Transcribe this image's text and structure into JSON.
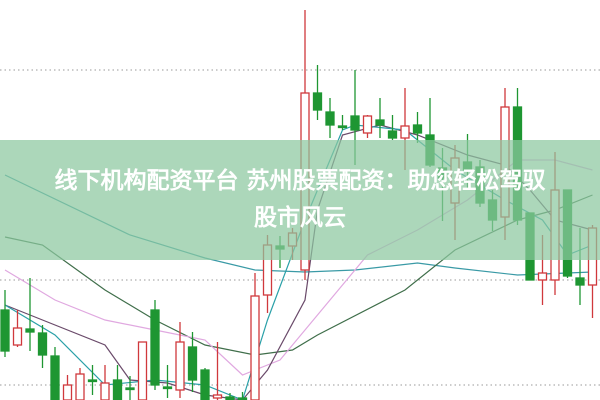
{
  "overlay": {
    "title_line1": "线下机构配资平台 苏州股票配资：助您轻松驾驭",
    "title_line2": "股市风云",
    "banner_color": "#8cc8a0"
  },
  "chart_data": {
    "type": "candlestick",
    "title": "",
    "xlabel": "",
    "ylabel": "",
    "ylim": [
      0,
      100
    ],
    "grid": "dotted horizontal",
    "colors": {
      "up": "#d0383c",
      "down": "#1e9632"
    },
    "gridlines": [
      82.5,
      30,
      3.75
    ],
    "candles": [
      {
        "o": 22.5,
        "h": 27.5,
        "l": 10.75,
        "c": 12.25
      },
      {
        "o": 13.75,
        "h": 22.5,
        "l": 13.25,
        "c": 18
      },
      {
        "o": 17.75,
        "h": 30.5,
        "l": 12.25,
        "c": 17
      },
      {
        "o": 16.75,
        "h": 18.75,
        "l": 8,
        "c": 11.25
      },
      {
        "o": 11,
        "h": 13.25,
        "l": 0,
        "c": 0
      },
      {
        "o": 0,
        "h": 6.25,
        "l": 0,
        "c": 3.75
      },
      {
        "o": 0,
        "h": 8,
        "l": 0,
        "c": 6.5
      },
      {
        "o": 5,
        "h": 8.75,
        "l": 1.25,
        "c": 5
      },
      {
        "o": 0,
        "h": 8.75,
        "l": 0,
        "c": 4.25
      },
      {
        "o": 5,
        "h": 8.75,
        "l": 0,
        "c": 0
      },
      {
        "o": 3,
        "h": 6,
        "l": 0,
        "c": 3
      },
      {
        "o": 0,
        "h": 14.5,
        "l": 0,
        "c": 14.5
      },
      {
        "o": 22.5,
        "h": 25,
        "l": 2.5,
        "c": 3.75
      },
      {
        "o": 3.25,
        "h": 8.75,
        "l": 0.5,
        "c": 3.25
      },
      {
        "o": 2.5,
        "h": 19.5,
        "l": 0.5,
        "c": 14.5
      },
      {
        "o": 13.25,
        "h": 17,
        "l": 2,
        "c": 5
      },
      {
        "o": 7.5,
        "h": 8,
        "l": 0,
        "c": 0
      },
      {
        "o": 0.5,
        "h": 14.5,
        "l": 0,
        "c": 1.25
      },
      {
        "o": 0.75,
        "h": 1.75,
        "l": 0,
        "c": 0
      },
      {
        "o": 0.5,
        "h": 2,
        "l": 0,
        "c": 0.5
      },
      {
        "o": 0,
        "h": 31.75,
        "l": 0,
        "c": 26
      },
      {
        "o": 26.25,
        "h": 41.25,
        "l": 21.75,
        "c": 38.75
      },
      {
        "o": 38.5,
        "h": 41,
        "l": 33,
        "c": 37.75
      },
      {
        "o": 38.5,
        "h": 43,
        "l": 35,
        "c": 41.75
      },
      {
        "o": 32.5,
        "h": 97.5,
        "l": 30,
        "c": 76.75
      },
      {
        "o": 76.75,
        "h": 83.75,
        "l": 70,
        "c": 72.5
      },
      {
        "o": 72,
        "h": 75.5,
        "l": 65.5,
        "c": 68.75
      },
      {
        "o": 68.5,
        "h": 71.25,
        "l": 67.5,
        "c": 68.5
      },
      {
        "o": 71,
        "h": 82.5,
        "l": 58.75,
        "c": 67.5
      },
      {
        "o": 66.75,
        "h": 71.25,
        "l": 65.5,
        "c": 71
      },
      {
        "o": 70,
        "h": 75.5,
        "l": 65.5,
        "c": 68.75
      },
      {
        "o": 67.25,
        "h": 71.25,
        "l": 65,
        "c": 65.5
      },
      {
        "o": 65.5,
        "h": 78,
        "l": 57.5,
        "c": 68.5
      },
      {
        "o": 68.75,
        "h": 72,
        "l": 64.25,
        "c": 66.75
      },
      {
        "o": 66.25,
        "h": 75.5,
        "l": 58.25,
        "c": 58.75
      },
      {
        "o": 58,
        "h": 63,
        "l": 44.75,
        "c": 55.5
      },
      {
        "o": 49.25,
        "h": 63.75,
        "l": 40,
        "c": 60.5
      },
      {
        "o": 59.5,
        "h": 66.5,
        "l": 52.5,
        "c": 57.5
      },
      {
        "o": 58.25,
        "h": 60,
        "l": 48.25,
        "c": 49.25
      },
      {
        "o": 50,
        "h": 52.5,
        "l": 42.25,
        "c": 45
      },
      {
        "o": 45.75,
        "h": 78,
        "l": 40,
        "c": 73.25
      },
      {
        "o": 73.25,
        "h": 78,
        "l": 43.75,
        "c": 45
      },
      {
        "o": 46.75,
        "h": 46.75,
        "l": 30,
        "c": 30
      },
      {
        "o": 30,
        "h": 41.25,
        "l": 23.75,
        "c": 31.75
      },
      {
        "o": 30,
        "h": 62,
        "l": 26.25,
        "c": 52.5
      },
      {
        "o": 52.5,
        "h": 52.5,
        "l": 30.5,
        "c": 31
      },
      {
        "o": 30.5,
        "h": 43,
        "l": 23.75,
        "c": 28.75
      },
      {
        "o": 28.75,
        "h": 43.75,
        "l": 20.5,
        "c": 43
      }
    ],
    "moving_averages": [
      {
        "color": "#3a9aa6",
        "points": [
          [
            0,
            56.25
          ],
          [
            10,
            41.25
          ],
          [
            16,
            35.5
          ],
          [
            20,
            32.5
          ],
          [
            24,
            32
          ],
          [
            28,
            32.5
          ],
          [
            33,
            34.25
          ],
          [
            36,
            33
          ],
          [
            41,
            31.25
          ],
          [
            47,
            32
          ]
        ]
      },
      {
        "color": "#3f6e4a",
        "points": [
          [
            0,
            40.75
          ],
          [
            3,
            38.75
          ],
          [
            8,
            27.5
          ],
          [
            12,
            20
          ],
          [
            16,
            13.75
          ],
          [
            20,
            11.25
          ],
          [
            23,
            12.5
          ],
          [
            25,
            16.25
          ],
          [
            32,
            27.5
          ],
          [
            36,
            37.5
          ],
          [
            41,
            45
          ],
          [
            44,
            47.5
          ],
          [
            47,
            51.25
          ]
        ]
      },
      {
        "color": "#e0a8e0",
        "points": [
          [
            0,
            32.5
          ],
          [
            4,
            25
          ],
          [
            8,
            20
          ],
          [
            12,
            17.5
          ],
          [
            16,
            15
          ],
          [
            19,
            6.25
          ],
          [
            22,
            10
          ],
          [
            25,
            21.25
          ],
          [
            29,
            36.25
          ],
          [
            33,
            42.5
          ],
          [
            37,
            50
          ],
          [
            41,
            60
          ],
          [
            44,
            60
          ],
          [
            47,
            57.5
          ]
        ]
      },
      {
        "color": "#6a4a6a",
        "points": [
          [
            0,
            23.75
          ],
          [
            3,
            20
          ],
          [
            8,
            13.75
          ],
          [
            10,
            5
          ],
          [
            13,
            4.25
          ],
          [
            16,
            1.25
          ],
          [
            19,
            0
          ],
          [
            21,
            7.5
          ],
          [
            24,
            25
          ],
          [
            25,
            47.5
          ],
          [
            27,
            66.25
          ],
          [
            30,
            68.75
          ],
          [
            33,
            66.25
          ],
          [
            37,
            61.25
          ],
          [
            40,
            58.75
          ],
          [
            42,
            52.5
          ],
          [
            44,
            45
          ],
          [
            47,
            42.5
          ]
        ]
      },
      {
        "color": "#2aa0a8",
        "points": [
          [
            0,
            23.75
          ],
          [
            4,
            16.25
          ],
          [
            8,
            3.75
          ],
          [
            12,
            5
          ],
          [
            16,
            3.75
          ],
          [
            19,
            0
          ],
          [
            21,
            20
          ],
          [
            24,
            45
          ],
          [
            27,
            67.5
          ],
          [
            28,
            68.75
          ],
          [
            32,
            67.5
          ],
          [
            36,
            57.5
          ],
          [
            40,
            50
          ],
          [
            43,
            45
          ],
          [
            45,
            36.25
          ],
          [
            47,
            38.75
          ]
        ]
      }
    ]
  }
}
